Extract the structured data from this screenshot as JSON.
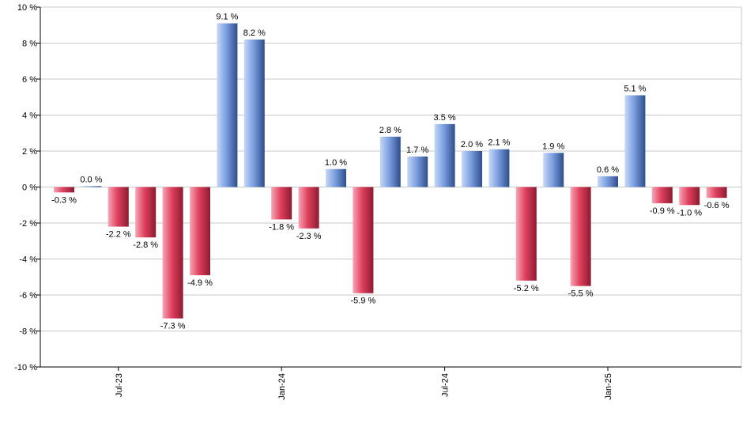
{
  "chart_data": {
    "type": "bar",
    "unit": "%",
    "x_tick_labels": [
      {
        "label": "Jul-23",
        "index": 2
      },
      {
        "label": "Jan-24",
        "index": 8
      },
      {
        "label": "Jul-24",
        "index": 14
      },
      {
        "label": "Jan-25",
        "index": 20
      }
    ],
    "values": [
      -0.3,
      0.0,
      -2.2,
      -2.8,
      -7.3,
      -4.9,
      9.1,
      8.2,
      -1.8,
      -2.3,
      1.0,
      -5.9,
      2.8,
      1.7,
      3.5,
      2.0,
      2.1,
      -5.2,
      1.9,
      -5.5,
      0.6,
      5.1,
      -0.9,
      -1.0,
      -0.6
    ],
    "data_labels": [
      "-0.3 %",
      "0.0 %",
      "-2.2 %",
      "-2.8 %",
      "-7.3 %",
      "-4.9 %",
      "9.1 %",
      "8.2 %",
      "-1.8 %",
      "-2.3 %",
      "1.0 %",
      "-5.9 %",
      "2.8 %",
      "1.7 %",
      "3.5 %",
      "2.0 %",
      "2.1 %",
      "-5.2 %",
      "1.9 %",
      "-5.5 %",
      "0.6 %",
      "5.1 %",
      "-0.9 %",
      "-1.0 %",
      "-0.6 %"
    ],
    "y_ticks": [
      10,
      8,
      6,
      4,
      2,
      0,
      -2,
      -4,
      -6,
      -8,
      -10
    ],
    "y_tick_labels": [
      "10 %",
      "8 %",
      "6 %",
      "4 %",
      "2 %",
      "0 %",
      "-2 %",
      "-4 %",
      "-6 %",
      "-8 %",
      "-10 %"
    ],
    "ylim": [
      -10,
      10
    ],
    "grid": "horizontal",
    "colors": {
      "positive_light": "#c7d8f7",
      "positive_mid": "#7b9fe0",
      "positive_dark": "#2e4e8c",
      "negative_light": "#f7a6b4",
      "negative_mid": "#e0405e",
      "negative_dark": "#8c1b30",
      "grid": "#c8c8c8",
      "axis": "#000000"
    }
  }
}
